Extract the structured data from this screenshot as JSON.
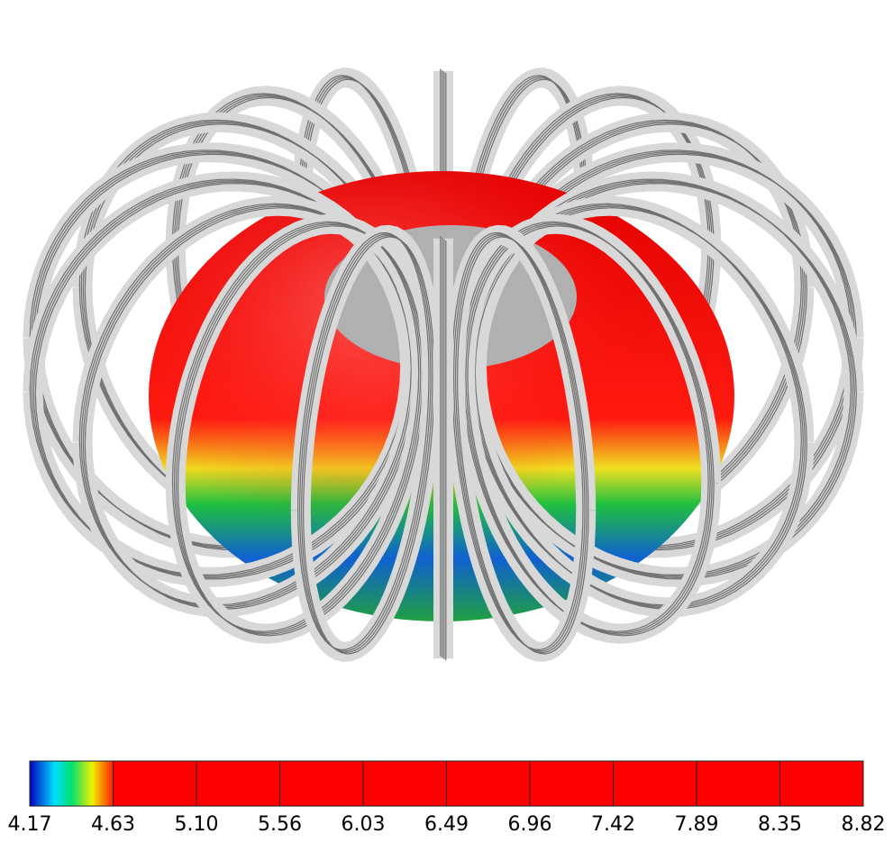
{
  "colorbar": {
    "labels": [
      "4.17",
      "4.63",
      "5.10",
      "5.56",
      "6.03",
      "6.49",
      "6.96",
      "7.42",
      "7.89",
      "8.35",
      "8.82"
    ]
  }
}
